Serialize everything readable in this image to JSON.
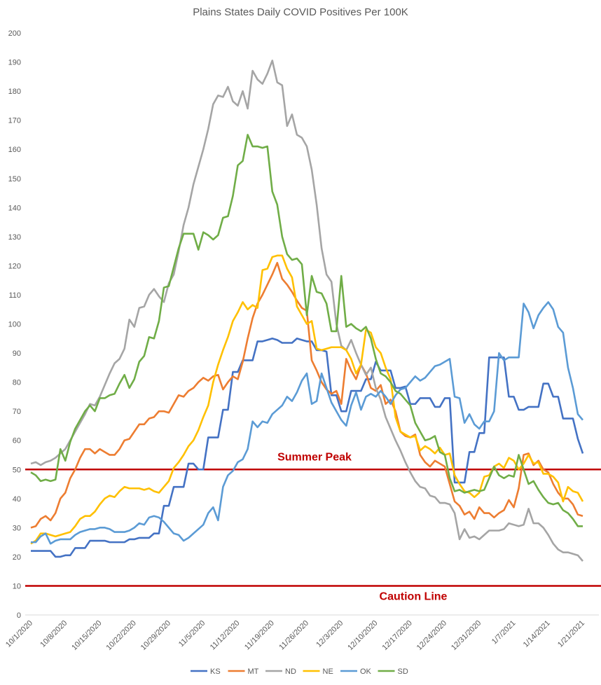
{
  "chart_data": {
    "type": "line",
    "title": "Plains States Daily COVID Positives Per 100K",
    "categories": [
      "10/1/2020",
      null,
      null,
      null,
      null,
      null,
      null,
      "10/8/2020",
      null,
      null,
      null,
      null,
      null,
      null,
      "10/15/2020",
      null,
      null,
      null,
      null,
      null,
      null,
      "10/22/2020",
      null,
      null,
      null,
      null,
      null,
      null,
      "10/29/2020",
      null,
      null,
      null,
      null,
      null,
      null,
      "11/5/2020",
      null,
      null,
      null,
      null,
      null,
      null,
      "11/12/2020",
      null,
      null,
      null,
      null,
      null,
      null,
      "11/19/2020",
      null,
      null,
      null,
      null,
      null,
      null,
      "11/26/2020",
      null,
      null,
      null,
      null,
      null,
      null,
      "12/3/2020",
      null,
      null,
      null,
      null,
      null,
      null,
      "12/10/2020",
      null,
      null,
      null,
      null,
      null,
      null,
      "12/17/2020",
      null,
      null,
      null,
      null,
      null,
      null,
      "12/24/2020",
      null,
      null,
      null,
      null,
      null,
      null,
      "12/31/2020",
      null,
      null,
      null,
      null,
      null,
      null,
      "1/7/2021",
      null,
      null,
      null,
      null,
      null,
      null,
      "1/14/2021",
      null,
      null,
      null,
      null,
      null,
      null,
      "1/21/2021"
    ],
    "ylim": [
      0,
      200
    ],
    "yticks": [
      0,
      10,
      20,
      30,
      40,
      50,
      60,
      70,
      80,
      90,
      100,
      110,
      120,
      130,
      140,
      150,
      160,
      170,
      180,
      190,
      200
    ],
    "grid": false,
    "legend": "bottom",
    "reference_lines": [
      {
        "label": "Summer Peak",
        "value": 50,
        "color": "#c00000"
      },
      {
        "label": "Caution Line",
        "value": 10,
        "color": "#c00000"
      }
    ],
    "series": [
      {
        "name": "KS",
        "color": "#4472c4",
        "values": [
          22,
          22,
          22,
          22,
          22,
          20,
          20,
          20.5,
          20.5,
          23,
          23,
          23,
          25.5,
          25.5,
          25.5,
          25.5,
          25,
          25,
          25,
          25,
          26,
          26,
          26.5,
          26.5,
          26.5,
          28,
          28,
          37.5,
          37.5,
          44,
          44,
          44,
          52,
          52,
          50,
          50,
          61,
          61,
          61,
          70.5,
          70.5,
          83.5,
          83.5,
          87.5,
          87.5,
          87.5,
          94,
          94,
          94.5,
          95,
          94.5,
          93.5,
          93.5,
          93.5,
          95,
          94.5,
          94,
          94,
          91,
          91,
          90.5,
          75.5,
          75.5,
          70,
          70,
          77,
          77,
          77,
          81,
          81,
          87,
          84,
          84,
          84,
          78,
          78,
          78.5,
          72.5,
          72.5,
          74.5,
          74.5,
          74.5,
          71.5,
          71.5,
          74.5,
          74.5,
          45.5,
          45.5,
          45.5,
          56,
          56,
          62.5,
          62.5,
          88.5,
          88.5,
          88.5,
          88.5,
          75,
          75,
          70.5,
          70.5,
          71.5,
          71.5,
          71.5,
          79.5,
          79.5,
          75,
          75,
          67.5,
          67.5,
          67.5,
          60.5,
          55.5
        ]
      },
      {
        "name": "MT",
        "color": "#ed7d31",
        "values": [
          30,
          30.5,
          33,
          34,
          32.5,
          35,
          40,
          42,
          47,
          50,
          54,
          57,
          57,
          55.5,
          57,
          56,
          55,
          55,
          57,
          60,
          60.5,
          63,
          65.5,
          65.5,
          67.5,
          68,
          70,
          70,
          69.5,
          72.5,
          75.5,
          75,
          77,
          78,
          80,
          81.5,
          80.5,
          82,
          82.5,
          77.5,
          80,
          82,
          81,
          87,
          95,
          102,
          107,
          110,
          113.5,
          117,
          121,
          115.5,
          113.5,
          111,
          108,
          105.5,
          104.5,
          87.5,
          84,
          80,
          77.5,
          76,
          77,
          72.5,
          88,
          84,
          81,
          86,
          83,
          78,
          77,
          79,
          72.5,
          74,
          70,
          63,
          61.5,
          61,
          62,
          55,
          52.5,
          51,
          53,
          52,
          51,
          45,
          39,
          37.5,
          34.5,
          35.5,
          33,
          37,
          35,
          35,
          33.5,
          35,
          36,
          39.5,
          37,
          43.5,
          55,
          55.5,
          51.5,
          53,
          50,
          49,
          45,
          42,
          40,
          40,
          38,
          34.5,
          34
        ]
      },
      {
        "name": "ND",
        "color": "#a5a5a5",
        "values": [
          52,
          52.5,
          51.5,
          52.5,
          53,
          54,
          55.5,
          57,
          60,
          63,
          66,
          69,
          72.5,
          72,
          75,
          79,
          83,
          86.5,
          88,
          91.5,
          101.5,
          99,
          105.5,
          106,
          110,
          112,
          109.5,
          107.5,
          114,
          117,
          125,
          134,
          140,
          148,
          154,
          160,
          167,
          175.5,
          178.5,
          178,
          181.5,
          176.5,
          175,
          180,
          174,
          187,
          184,
          182.5,
          186,
          190.5,
          183,
          182,
          168,
          172,
          165,
          164,
          161,
          153,
          141,
          126,
          117,
          114.5,
          100,
          92.5,
          91,
          94.5,
          90,
          86,
          82.5,
          85,
          78,
          74,
          68,
          64,
          60,
          56.5,
          52.5,
          49,
          46,
          44,
          43.5,
          41,
          40.5,
          38.5,
          38.5,
          38,
          35,
          26,
          29.5,
          26.5,
          27,
          26,
          27.5,
          29,
          29,
          29,
          29.5,
          31.5,
          31,
          30.5,
          31,
          36.5,
          31.5,
          31.5,
          30,
          27.5,
          24.5,
          22.5,
          21.5,
          21.5,
          21,
          20.5,
          18.5
        ]
      },
      {
        "name": "NE",
        "color": "#ffc000",
        "values": [
          24.5,
          25.5,
          28,
          28,
          27.5,
          27,
          27.5,
          28,
          28.5,
          30.5,
          33,
          34,
          34,
          35.5,
          38,
          40,
          41,
          40.5,
          42.5,
          44,
          43.5,
          43.5,
          43.5,
          43,
          43.5,
          42.5,
          42,
          44,
          46,
          50.5,
          52.5,
          55,
          58,
          60,
          63.5,
          68,
          72,
          80,
          86,
          91,
          95.5,
          101,
          104,
          107.5,
          105,
          106.5,
          105.5,
          118.5,
          119,
          123,
          123.5,
          123.5,
          119,
          116,
          106,
          103,
          100,
          101,
          91.5,
          91,
          91.5,
          92,
          92,
          92,
          91,
          88,
          83,
          86,
          98,
          97,
          92,
          90,
          85,
          81,
          68,
          63,
          62,
          61,
          61.5,
          56.5,
          58,
          57,
          55.5,
          57.5,
          55,
          55.5,
          48,
          45,
          42.5,
          42,
          40.5,
          42,
          47.5,
          48,
          51,
          52,
          50.5,
          54,
          53,
          50,
          52,
          55,
          52,
          52.5,
          48.5,
          48.5,
          47.5,
          45.5,
          39,
          44,
          42.5,
          42,
          39
        ]
      },
      {
        "name": "OK",
        "color": "#5b9bd5",
        "values": [
          25,
          25,
          27,
          28,
          24.5,
          25.5,
          26,
          26,
          26,
          27.5,
          28.5,
          29,
          29.5,
          29.5,
          30,
          30,
          29.5,
          28.5,
          28.5,
          28.5,
          29,
          30,
          31.5,
          31,
          33.5,
          34,
          33.5,
          32,
          30,
          28,
          27.5,
          25.5,
          26.5,
          28,
          29.5,
          31,
          35,
          37,
          32.5,
          44,
          48,
          49.5,
          52.5,
          53.5,
          57,
          66.5,
          64.5,
          66.5,
          66,
          69,
          70.5,
          72,
          75,
          73.5,
          76.5,
          80.5,
          83,
          72.5,
          73.5,
          83,
          78,
          73,
          70,
          67,
          65,
          72,
          76.5,
          70.5,
          75,
          76,
          75,
          77,
          75,
          72.5,
          75.5,
          77.5,
          78,
          80,
          82,
          80.5,
          81.5,
          83.5,
          85.5,
          86,
          87,
          88,
          75,
          74.5,
          66,
          69,
          65.5,
          64,
          66.5,
          66.5,
          70,
          90,
          87.5,
          88.5,
          88.5,
          88.5,
          107,
          104,
          98.5,
          103,
          105.5,
          107.5,
          105,
          99,
          97,
          85,
          78,
          69,
          67
        ]
      },
      {
        "name": "SD",
        "color": "#70ad47",
        "values": [
          49,
          48,
          46,
          46.5,
          46,
          46.5,
          57,
          53,
          59.5,
          64,
          67,
          70,
          72,
          70,
          74.5,
          74.5,
          75.5,
          76,
          79.5,
          82.5,
          78,
          81,
          87,
          89,
          95.5,
          95,
          101,
          112.5,
          113,
          119.5,
          126,
          131,
          131,
          131,
          125.5,
          131.5,
          130.5,
          129,
          130.5,
          136.5,
          137,
          144,
          154.5,
          156,
          165,
          161,
          161,
          160.5,
          161,
          145.5,
          141,
          130,
          124,
          122,
          122.5,
          120.5,
          103,
          116.5,
          111,
          110.5,
          107,
          97.5,
          97.5,
          116.5,
          99,
          100,
          98.5,
          97.5,
          99,
          95,
          88,
          83,
          82,
          80,
          77,
          76,
          74,
          72,
          66,
          63,
          60,
          60.5,
          61.5,
          56,
          55,
          47,
          42.5,
          43,
          42,
          42.5,
          43,
          42.5,
          43,
          47,
          51,
          48,
          47,
          48,
          47.5,
          55,
          50,
          45,
          46,
          43,
          40.5,
          38.5,
          38,
          38.5,
          36,
          35,
          33,
          30.5,
          30.5
        ]
      }
    ]
  }
}
